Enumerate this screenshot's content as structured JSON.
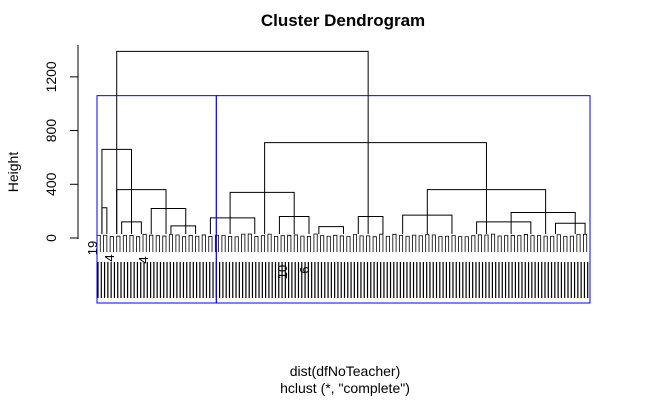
{
  "chart_data": {
    "type": "dendrogram",
    "title": "Cluster Dendrogram",
    "ylabel": "Height",
    "xlabel": "dist(dfNoTeacher)",
    "sublabel": "hclust (*, \"complete\")",
    "ylim": [
      0,
      1400
    ],
    "yticks": [
      0,
      400,
      800,
      1200
    ],
    "merges": [
      {
        "x1": 0.04,
        "x2": 0.55,
        "height": 1390
      },
      {
        "x1": 0.01,
        "x2": 0.07,
        "height": 660
      },
      {
        "x1": 0.34,
        "x2": 0.79,
        "height": 710
      },
      {
        "x1": 0.04,
        "x2": 0.14,
        "height": 360
      },
      {
        "x1": 0.27,
        "x2": 0.4,
        "height": 340
      },
      {
        "x1": 0.67,
        "x2": 0.91,
        "height": 360
      },
      {
        "x1": 0.11,
        "x2": 0.18,
        "height": 220
      },
      {
        "x1": 0.84,
        "x2": 0.97,
        "height": 190
      },
      {
        "x1": 0.01,
        "x2": 0.02,
        "height": 225
      },
      {
        "x1": 0.23,
        "x2": 0.32,
        "height": 150
      },
      {
        "x1": 0.37,
        "x2": 0.43,
        "height": 160
      },
      {
        "x1": 0.53,
        "x2": 0.58,
        "height": 160
      },
      {
        "x1": 0.62,
        "x2": 0.72,
        "height": 170
      },
      {
        "x1": 0.77,
        "x2": 0.88,
        "height": 120
      },
      {
        "x1": 0.93,
        "x2": 0.99,
        "height": 110
      },
      {
        "x1": 0.05,
        "x2": 0.09,
        "height": 120
      },
      {
        "x1": 0.15,
        "x2": 0.2,
        "height": 90
      },
      {
        "x1": 0.45,
        "x2": 0.5,
        "height": 85
      }
    ],
    "visible_leaf_labels": [
      "19",
      "4",
      "4",
      "10",
      "6"
    ],
    "cluster_boxes": [
      {
        "k": 1,
        "top": 1060
      },
      {
        "k": 2,
        "top": 1060
      }
    ],
    "box_color": "#0000ff",
    "line_color": "#000000"
  }
}
